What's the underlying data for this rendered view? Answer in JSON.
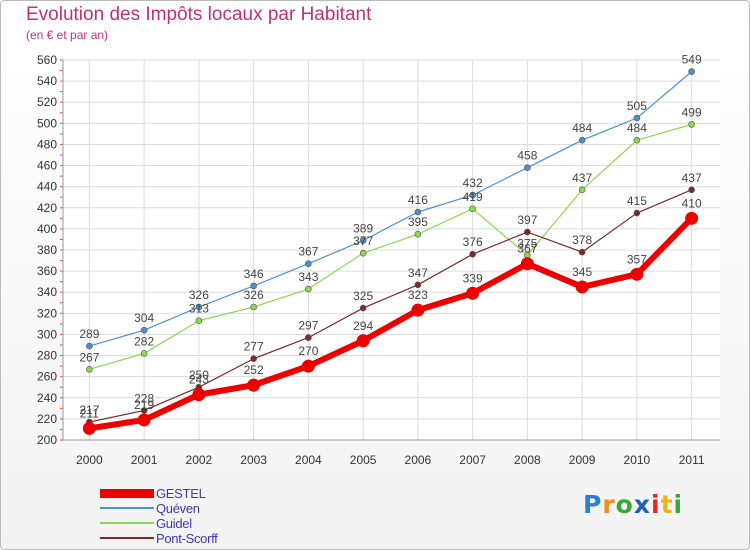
{
  "chart_data": {
    "type": "line",
    "title": "Evolution des Impôts locaux par Habitant",
    "subtitle": "(en € et par an)",
    "xlabel": "",
    "ylabel": "",
    "categories": [
      "2000",
      "2001",
      "2002",
      "2003",
      "2004",
      "2005",
      "2006",
      "2007",
      "2008",
      "2009",
      "2010",
      "2011"
    ],
    "ylim": [
      200,
      560
    ],
    "yticks": [
      200,
      220,
      240,
      260,
      280,
      300,
      320,
      340,
      360,
      380,
      400,
      420,
      440,
      460,
      480,
      500,
      520,
      540,
      560
    ],
    "grid": true,
    "legend_position": "bottom-left",
    "series": [
      {
        "name": "GESTEL",
        "color": "#ee0000",
        "values": [
          211,
          219,
          243,
          252,
          270,
          294,
          323,
          339,
          367,
          345,
          357,
          410
        ]
      },
      {
        "name": "Quéven",
        "color": "#4f8fd0",
        "values": [
          289,
          304,
          326,
          346,
          367,
          389,
          416,
          432,
          458,
          484,
          505,
          549
        ]
      },
      {
        "name": "Guidel",
        "color": "#8cd651",
        "values": [
          267,
          282,
          313,
          326,
          343,
          377,
          395,
          419,
          375,
          437,
          484,
          499
        ]
      },
      {
        "name": "Pont-Scorff",
        "color": "#7a2a2a",
        "values": [
          217,
          228,
          250,
          277,
          297,
          325,
          347,
          376,
          397,
          378,
          415,
          437
        ]
      }
    ]
  },
  "logo": {
    "letters": [
      "P",
      "r",
      "o",
      "x",
      "i",
      "t",
      "i"
    ],
    "colors": [
      "#2a7fd4",
      "#f28c1c",
      "#3aa63a",
      "#1f5fb8",
      "#e02828",
      "#e8b81a",
      "#3aa63a"
    ]
  }
}
